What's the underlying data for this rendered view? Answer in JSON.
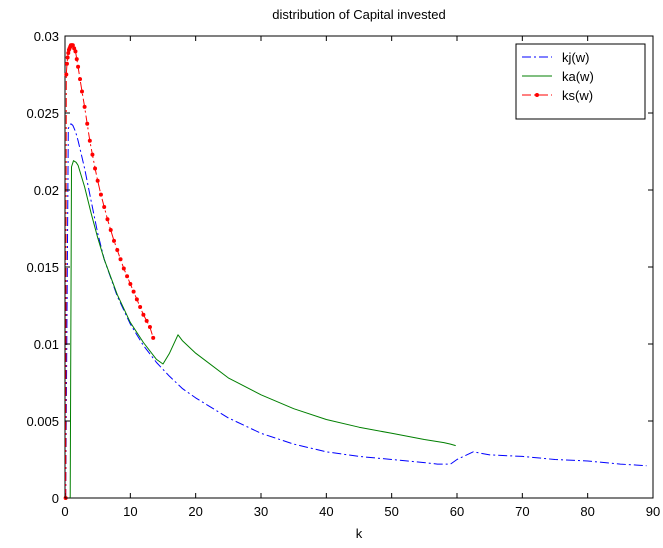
{
  "chart_data": {
    "type": "line",
    "title": "distribution of Capital invested",
    "xlabel": "k",
    "ylabel": "",
    "xlim": [
      0,
      90
    ],
    "ylim": [
      0,
      0.03
    ],
    "xticks": [
      "0",
      "10",
      "20",
      "30",
      "40",
      "50",
      "60",
      "70",
      "80",
      "90"
    ],
    "yticks": [
      "0",
      "0.005",
      "0.01",
      "0.015",
      "0.02",
      "0.025",
      "0.03"
    ],
    "grid": false,
    "legend_position": "top-right",
    "series": [
      {
        "name": "kj(w)",
        "color": "#0000ff",
        "line_style": "dash-dot",
        "marker": "none",
        "x": [
          0.1,
          0.5,
          0.9,
          1.2,
          1.6,
          2,
          3,
          4,
          5,
          6,
          8,
          10,
          12,
          14,
          16,
          18,
          20,
          25,
          30,
          35,
          40,
          45,
          50,
          55,
          57,
          59,
          60,
          62.5,
          65,
          70,
          75,
          80,
          85,
          89
        ],
        "y": [
          0.0,
          0.024,
          0.0243,
          0.0242,
          0.0238,
          0.0232,
          0.0214,
          0.0193,
          0.0172,
          0.0155,
          0.0131,
          0.0113,
          0.0099,
          0.0088,
          0.0079,
          0.0071,
          0.0065,
          0.0052,
          0.0042,
          0.0035,
          0.003,
          0.0027,
          0.0025,
          0.0023,
          0.0022,
          0.0022,
          0.0025,
          0.003,
          0.0028,
          0.0027,
          0.0025,
          0.0024,
          0.0022,
          0.0021
        ]
      },
      {
        "name": "ka(w)",
        "color": "#007f00",
        "line_style": "solid",
        "marker": "none",
        "x": [
          0.8,
          1,
          1.3,
          1.7,
          2,
          3,
          4,
          5,
          6,
          8,
          10,
          12,
          14,
          15,
          16,
          17.3,
          18,
          20,
          25,
          30,
          35,
          40,
          45,
          50,
          55,
          58,
          59,
          59.8
        ],
        "y": [
          0.0,
          0.0215,
          0.0219,
          0.0218,
          0.0216,
          0.0202,
          0.0185,
          0.0169,
          0.0155,
          0.0132,
          0.0114,
          0.0101,
          0.009,
          0.0087,
          0.0094,
          0.0106,
          0.0102,
          0.0094,
          0.0078,
          0.0067,
          0.0058,
          0.0051,
          0.0046,
          0.0042,
          0.0038,
          0.0036,
          0.0035,
          0.0034
        ]
      },
      {
        "name": "ks(w)",
        "color": "#ff0000",
        "line_style": "dash-dot",
        "marker": "dot",
        "x": [
          0.1,
          0.2,
          0.3,
          0.4,
          0.5,
          0.6,
          0.7,
          0.8,
          0.9,
          1,
          1.1,
          1.2,
          1.4,
          1.6,
          1.8,
          2,
          2.3,
          2.6,
          3,
          3.4,
          3.8,
          4.2,
          4.6,
          5,
          5.5,
          6,
          6.5,
          7,
          7.5,
          8,
          8.5,
          9,
          9.5,
          10,
          10.5,
          11,
          11.5,
          12,
          12.5,
          13,
          13.5
        ],
        "y": [
          0.0,
          0.0275,
          0.0282,
          0.0286,
          0.0289,
          0.0291,
          0.0292,
          0.0293,
          0.0294,
          0.0294,
          0.0294,
          0.0294,
          0.0292,
          0.029,
          0.0285,
          0.028,
          0.0272,
          0.0264,
          0.0254,
          0.0243,
          0.0232,
          0.0223,
          0.0214,
          0.0206,
          0.0197,
          0.0189,
          0.0181,
          0.0174,
          0.0167,
          0.0161,
          0.0155,
          0.0149,
          0.0144,
          0.0139,
          0.0134,
          0.0129,
          0.0124,
          0.0119,
          0.0115,
          0.0111,
          0.0104
        ]
      }
    ]
  }
}
